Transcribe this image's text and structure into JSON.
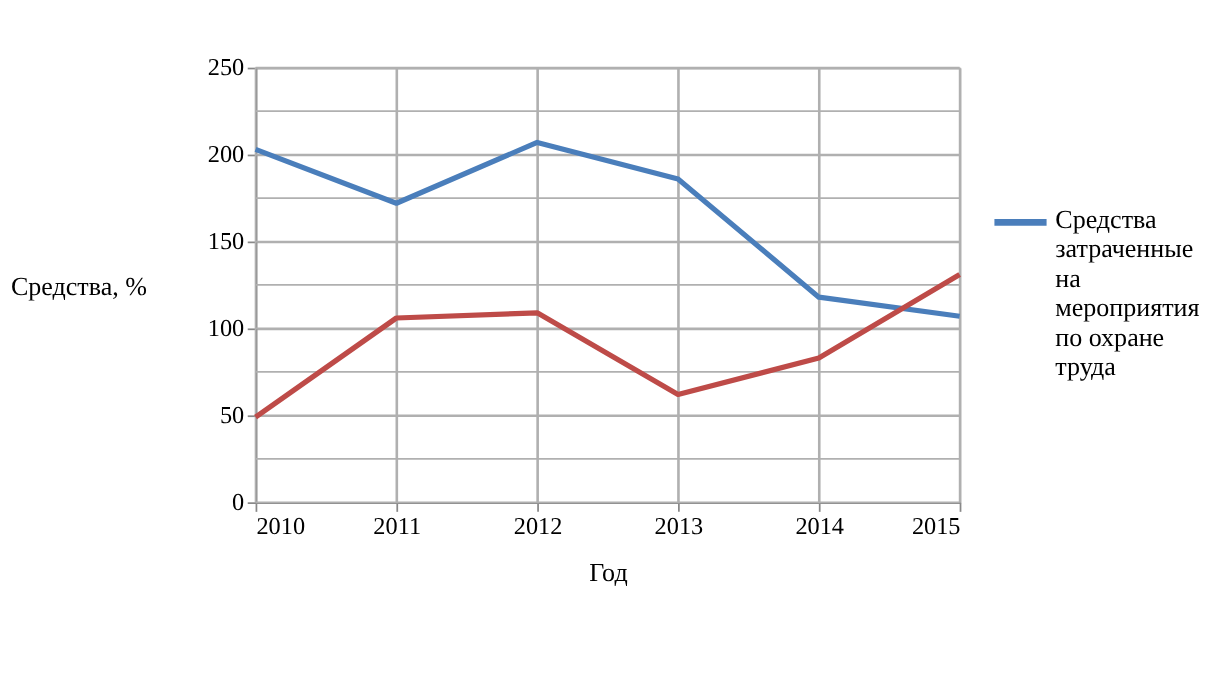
{
  "chart_data": {
    "type": "line",
    "xlabel": "Год",
    "ylabel": "Средства, %",
    "x": [
      2010,
      2011,
      2012,
      2013,
      2014,
      2015
    ],
    "series": [
      {
        "name": "Средства затраченные на мероприятия по охране труда",
        "color": "#4a7ebb",
        "values": [
          203,
          172,
          207,
          186,
          118,
          107
        ]
      },
      {
        "color": "#be4b48",
        "values": [
          49,
          106,
          109,
          62,
          83,
          131
        ]
      }
    ],
    "xlim": [
      2010,
      2015
    ],
    "xticks": [
      2010,
      2011,
      2012,
      2013,
      2014,
      2015
    ],
    "ylim": [
      0,
      250
    ],
    "yticks": [
      0,
      {
        "value": 25,
        "label": null
      },
      50,
      {
        "value": 75,
        "label": null
      },
      100,
      {
        "value": 125,
        "label": null
      },
      150,
      {
        "value": 175,
        "label": null
      },
      200,
      {
        "value": 225,
        "label": null
      },
      250
    ],
    "grid": true,
    "legend": "right",
    "marker": "none",
    "line_style": "solid"
  }
}
